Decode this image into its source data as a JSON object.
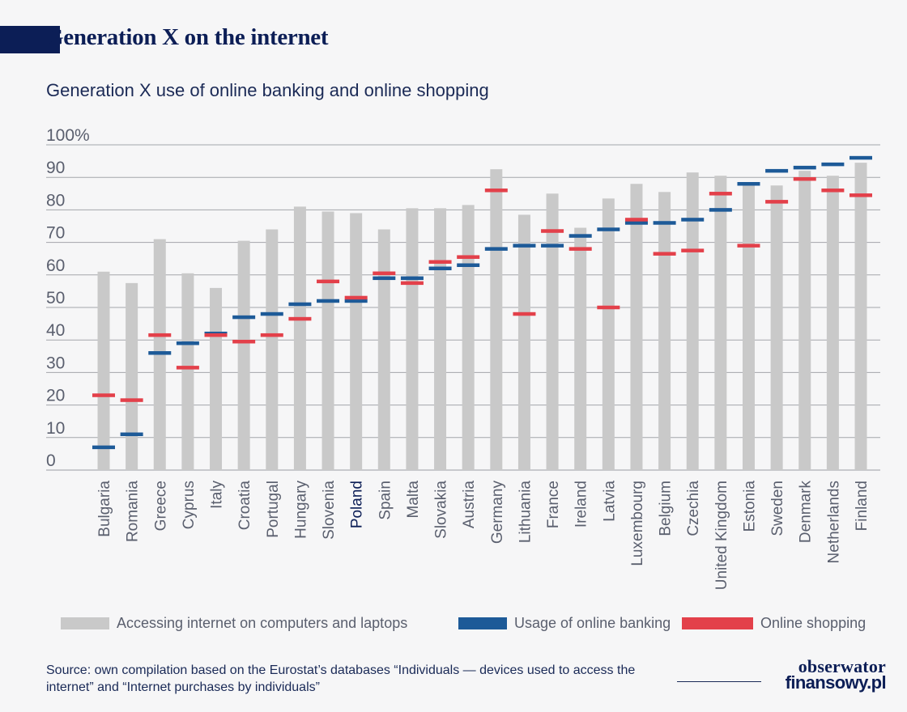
{
  "header": {
    "title": "Generation X on the internet",
    "subtitle": "Generation X use of online banking and online shopping"
  },
  "colors": {
    "internet": "#c9c9c9",
    "banking": "#1d5a98",
    "shopping": "#e3404a",
    "highlight_label": "#0c1e56",
    "axis_label": "#5a5f6e"
  },
  "chart_data": {
    "type": "bar",
    "ylim": [
      0,
      100
    ],
    "yticks": [
      "0",
      "10",
      "20",
      "30",
      "40",
      "50",
      "60",
      "70",
      "80",
      "90",
      "100%"
    ],
    "grid": true,
    "legend_position": "bottom",
    "highlight_category": "Poland",
    "categories": [
      "Bulgaria",
      "Romania",
      "Greece",
      "Cyprus",
      "Italy",
      "Croatia",
      "Portugal",
      "Hungary",
      "Slovenia",
      "Poland",
      "Spain",
      "Malta",
      "Slovakia",
      "Austria",
      "Germany",
      "Lithuania",
      "France",
      "Ireland",
      "Latvia",
      "Luxembourg",
      "Belgium",
      "Czechia",
      "United Kingdom",
      "Estonia",
      "Sweden",
      "Denmark",
      "Netherlands",
      "Finland"
    ],
    "series": [
      {
        "name": "Accessing internet on computers and laptops",
        "marker": "bar",
        "values": [
          61,
          57.5,
          71,
          60.5,
          56,
          70.5,
          74,
          81,
          79.5,
          79,
          74,
          80.5,
          80.5,
          81.5,
          92.5,
          78.5,
          85,
          74.5,
          83.5,
          88,
          85.5,
          91.5,
          90.5,
          87.5,
          87.5,
          92,
          90.5,
          94.5
        ]
      },
      {
        "name": "Usage of online banking",
        "marker": "dash",
        "values": [
          7,
          11,
          36,
          39,
          42,
          47,
          48,
          51,
          52,
          52,
          59,
          59,
          62,
          63,
          68,
          69,
          69,
          72,
          74,
          76,
          76,
          77,
          80,
          88,
          92,
          93,
          94,
          96
        ]
      },
      {
        "name": "Online shopping",
        "marker": "dash",
        "values": [
          23,
          21.5,
          41.5,
          31.5,
          41.5,
          39.5,
          41.5,
          46.5,
          58,
          53,
          60.5,
          57.5,
          64,
          65.5,
          86,
          48,
          73.5,
          68,
          50,
          77,
          66.5,
          67.5,
          85,
          69,
          82.5,
          89.5,
          86,
          84.5
        ]
      }
    ]
  },
  "legend": [
    {
      "label": "Accessing internet on computers and laptops"
    },
    {
      "label": "Usage of online banking"
    },
    {
      "label": "Online shopping"
    }
  ],
  "footer": {
    "source": "Source: own compilation based on the Eurostat’s databases “Individuals — devices used to access the internet” and “Internet purchases by individuals”",
    "logo_line1": "obserwator",
    "logo_line2": "finansowy.pl"
  }
}
